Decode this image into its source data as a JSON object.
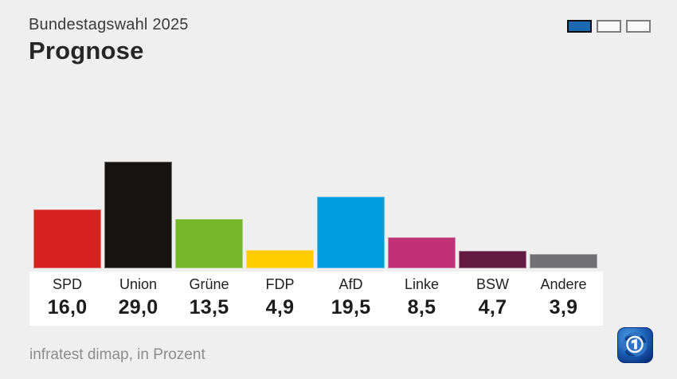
{
  "header": {
    "subtitle": "Bundestagswahl 2025",
    "title": "Prognose"
  },
  "pagination": {
    "total": 3,
    "active_index": 0,
    "active_color": "#1b69b1"
  },
  "chart_data": {
    "type": "bar",
    "title": "Prognose",
    "subtitle": "Bundestagswahl 2025",
    "categories": [
      "SPD",
      "Union",
      "Grüne",
      "FDP",
      "AfD",
      "Linke",
      "BSW",
      "Andere"
    ],
    "values": [
      16.0,
      29.0,
      13.5,
      4.9,
      19.5,
      8.5,
      4.7,
      3.9
    ],
    "value_labels": [
      "16,0",
      "29,0",
      "13,5",
      "4,9",
      "19,5",
      "8,5",
      "4,7",
      "3,9"
    ],
    "colors": [
      "#d6221f",
      "#161412",
      "#77b82a",
      "#ffcc00",
      "#009ee0",
      "#bf3076",
      "#651b41",
      "#717174"
    ],
    "ylim": [
      0,
      30
    ],
    "unit": "Prozent",
    "grid": false,
    "legend": "none",
    "source": "infratest dimap, in Prozent"
  },
  "footer": {
    "source_label": "infratest dimap, in Prozent"
  },
  "logo": {
    "name": "das-erste-logo",
    "accent": "#1b69b1"
  }
}
